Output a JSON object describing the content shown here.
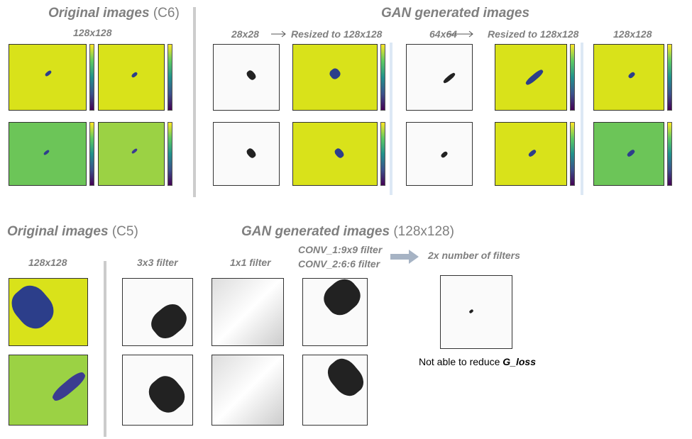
{
  "top": {
    "left": {
      "title": "Original images",
      "tag": "(C6)",
      "size": "128x128"
    },
    "right": {
      "title": "GAN generated images",
      "columns": [
        "28x28",
        "Resized to 128x128",
        "64x64",
        "Resized to 128x128",
        "128x128"
      ]
    }
  },
  "bottom": {
    "left": {
      "title": "Original images",
      "tag": "(C5)",
      "size": "128x128"
    },
    "right": {
      "title": "GAN generated images",
      "tag": "(128x128)",
      "columns": [
        "3x3 filter",
        "1x1 filter",
        "CONV_1:9x9 filter",
        "CONV_2:6:6 filter",
        "2x number of filters"
      ],
      "note": "Not able to reduce ",
      "note_emph": "G_loss"
    }
  }
}
